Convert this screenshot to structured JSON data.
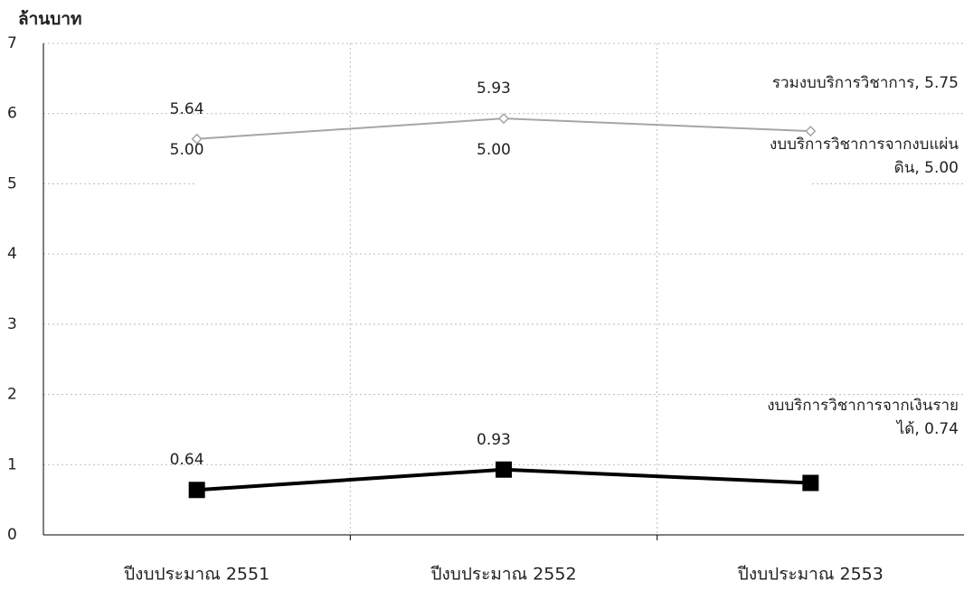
{
  "chart_data": {
    "type": "line",
    "y_label": "ล้านบาท",
    "categories": [
      "ปีงบประมาณ 2551",
      "ปีงบประมาณ 2552",
      "ปีงบประมาณ 2553"
    ],
    "series": [
      {
        "color": "#a6a6a6",
        "marker": "diamond",
        "values": [
          5.64,
          5.93,
          5.75
        ],
        "value_labels": [
          "5.64",
          "5.93",
          "รวมงบบริการวิชาการ, 5.75"
        ]
      },
      {
        "color": "#ffffff",
        "marker": "none",
        "values": [
          5.0,
          5.0,
          5.0
        ],
        "value_labels": [
          "5.00",
          "5.00",
          "งบบริการวิชาการจากงบแผ่นดิน, 5.00"
        ]
      },
      {
        "color": "#000000",
        "marker": "square",
        "values": [
          0.64,
          0.93,
          0.74
        ],
        "value_labels": [
          "0.64",
          "0.93",
          "งบบริการวิชาการจากเงินรายได้, 0.74"
        ]
      }
    ],
    "ylim": [
      0,
      7
    ],
    "yticks": [
      0,
      1,
      2,
      3,
      4,
      5,
      6,
      7
    ],
    "grid": true
  }
}
